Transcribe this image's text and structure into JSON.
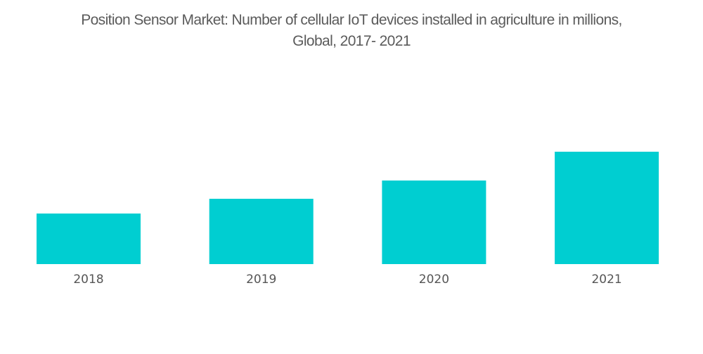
{
  "chart_data": {
    "type": "bar",
    "title": "Position Sensor Market: Number of cellular IoT devices installed in agriculture in millions,",
    "subtitle": "Global, 2017- 2021",
    "categories": [
      "2018",
      "2019",
      "2020",
      "2021"
    ],
    "values": [
      72,
      93,
      119,
      160
    ],
    "value_note": "relative heights; no y-axis or data labels shown",
    "xlabel": "",
    "ylabel": "",
    "ylim": [
      0,
      160
    ],
    "grid": false,
    "legend": "none",
    "bar_color": "#00CED1"
  }
}
